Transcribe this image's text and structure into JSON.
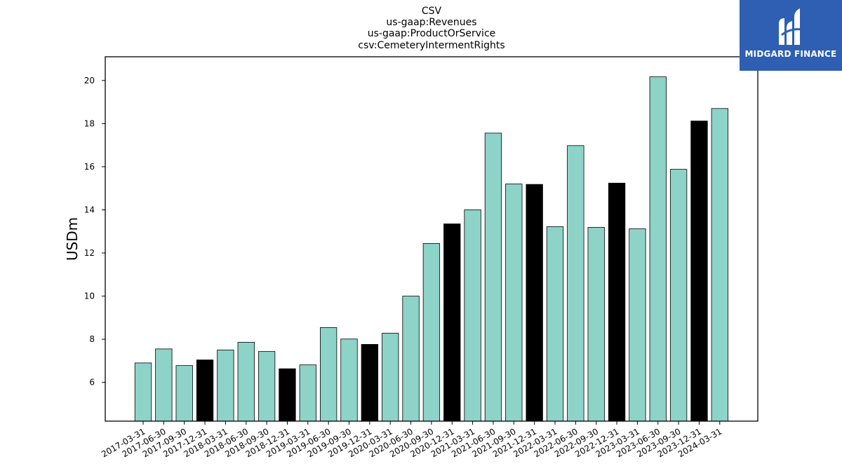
{
  "logo": {
    "text": "MIDGARD FINANCE",
    "background": "#2e5fb2"
  },
  "chart_data": {
    "type": "bar",
    "title_lines": [
      "CSV",
      "us-gaap:Revenues",
      "us-gaap:ProductOrService",
      "csv:CemeteryIntermentRights"
    ],
    "xlabel": "",
    "ylabel": "USDm",
    "ylim": [
      4.2,
      21.1
    ],
    "yticks": [
      6,
      8,
      10,
      12,
      14,
      16,
      18,
      20
    ],
    "grid": false,
    "colors": {
      "default": "#8dd3c7",
      "q4": "#000000",
      "edge": "#000000"
    },
    "categories": [
      "2017-03-31",
      "2017-06-30",
      "2017-09-30",
      "2017-12-31",
      "2018-03-31",
      "2018-06-30",
      "2018-09-30",
      "2018-12-31",
      "2019-03-31",
      "2019-06-30",
      "2019-09-30",
      "2019-12-31",
      "2020-03-31",
      "2020-06-30",
      "2020-09-30",
      "2020-12-31",
      "2021-03-31",
      "2021-06-30",
      "2021-09-30",
      "2021-12-31",
      "2022-03-31",
      "2022-06-30",
      "2022-09-30",
      "2022-12-31",
      "2023-03-31",
      "2023-06-30",
      "2023-09-30",
      "2023-12-31",
      "2024-03-31"
    ],
    "values": [
      6.9,
      7.55,
      6.78,
      7.04,
      7.5,
      7.86,
      7.43,
      6.63,
      6.81,
      8.54,
      8.01,
      7.76,
      8.28,
      10.0,
      12.44,
      13.35,
      14.0,
      17.56,
      15.2,
      15.18,
      13.22,
      16.98,
      13.19,
      15.24,
      13.12,
      20.17,
      15.88,
      18.12,
      18.7
    ]
  }
}
